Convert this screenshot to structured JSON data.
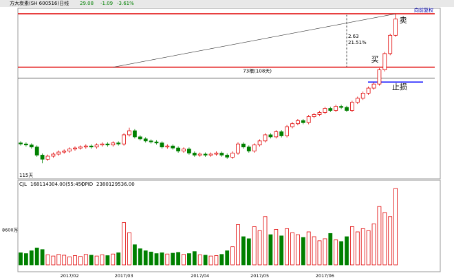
{
  "chart_data": {
    "type": "candlestick",
    "title": "方大炭素(SH 600516)日线",
    "last": "29.08",
    "change": "-1.09",
    "change_pct": "-3.61%",
    "adjust": "向前复权",
    "ylim": [
      6.9,
      15.2
    ],
    "categories": [
      null,
      null,
      null,
      null,
      null,
      null,
      null,
      null,
      null,
      "2017/02",
      null,
      null,
      null,
      null,
      null,
      null,
      null,
      null,
      null,
      "2017/03",
      null,
      null,
      null,
      null,
      null,
      null,
      null,
      null,
      null,
      null,
      null,
      null,
      null,
      "2017/04",
      null,
      null,
      null,
      null,
      null,
      null,
      null,
      null,
      null,
      null,
      "2017/05",
      null,
      null,
      null,
      null,
      null,
      null,
      null,
      null,
      null,
      null,
      null,
      "2017/06",
      null,
      null,
      null,
      null,
      null,
      null,
      null,
      null,
      null,
      null,
      null,
      null,
      null
    ],
    "open": [
      8.5,
      8.45,
      8.4,
      8.3,
      7.9,
      7.7,
      7.85,
      7.95,
      8.05,
      8.1,
      8.2,
      8.25,
      8.3,
      8.35,
      8.3,
      8.4,
      8.45,
      8.4,
      8.5,
      8.45,
      8.9,
      9.1,
      8.8,
      8.7,
      8.6,
      8.55,
      8.5,
      8.3,
      8.35,
      8.25,
      8.1,
      8.2,
      8.0,
      7.9,
      7.95,
      7.9,
      7.95,
      8.0,
      7.9,
      7.8,
      8.0,
      8.45,
      8.3,
      8.1,
      8.4,
      8.6,
      8.9,
      8.8,
      9.05,
      8.85,
      9.3,
      9.45,
      9.6,
      9.5,
      9.8,
      9.9,
      10.0,
      10.2,
      10.1,
      10.3,
      10.25,
      10.1,
      10.5,
      10.7,
      10.95,
      11.2,
      11.4,
      12.1,
      12.9,
      13.8
    ],
    "close": [
      8.45,
      8.4,
      8.3,
      7.9,
      7.7,
      7.85,
      7.95,
      8.05,
      8.1,
      8.2,
      8.25,
      8.3,
      8.35,
      8.3,
      8.4,
      8.45,
      8.4,
      8.5,
      8.45,
      8.9,
      9.1,
      8.8,
      8.7,
      8.6,
      8.55,
      8.5,
      8.3,
      8.35,
      8.25,
      8.1,
      8.2,
      8.0,
      7.9,
      7.95,
      7.9,
      7.95,
      8.0,
      7.9,
      7.8,
      8.0,
      8.45,
      8.3,
      8.1,
      8.4,
      8.6,
      8.9,
      8.8,
      9.05,
      8.85,
      9.3,
      9.45,
      9.6,
      9.5,
      9.8,
      9.9,
      10.0,
      10.2,
      10.1,
      10.3,
      10.25,
      10.1,
      10.5,
      10.7,
      10.95,
      11.2,
      11.4,
      12.1,
      12.9,
      13.8,
      14.6
    ],
    "high": [
      8.58,
      8.53,
      8.48,
      8.38,
      7.98,
      7.93,
      8.03,
      8.13,
      8.18,
      8.28,
      8.33,
      8.38,
      8.43,
      8.43,
      8.48,
      8.53,
      8.53,
      8.58,
      8.58,
      8.98,
      9.25,
      9.18,
      8.88,
      8.78,
      8.68,
      8.63,
      8.58,
      8.43,
      8.43,
      8.33,
      8.28,
      8.28,
      8.08,
      8.03,
      8.03,
      8.03,
      8.08,
      8.08,
      7.98,
      8.08,
      8.53,
      8.53,
      8.38,
      8.48,
      8.68,
      8.98,
      8.98,
      9.13,
      9.13,
      9.38,
      9.53,
      9.68,
      9.68,
      9.88,
      9.98,
      10.08,
      10.28,
      10.28,
      10.38,
      10.38,
      10.33,
      10.58,
      10.78,
      11.03,
      11.28,
      11.48,
      12.18,
      12.98,
      13.88,
      14.86
    ],
    "low": [
      8.37,
      8.32,
      8.22,
      7.82,
      7.5,
      7.62,
      7.77,
      7.87,
      7.97,
      8.02,
      8.12,
      8.17,
      8.22,
      8.22,
      8.22,
      8.32,
      8.32,
      8.32,
      8.37,
      8.37,
      8.82,
      8.72,
      8.62,
      8.52,
      8.47,
      8.42,
      8.22,
      8.22,
      8.17,
      8.02,
      8.02,
      7.92,
      7.82,
      7.82,
      7.82,
      7.82,
      7.87,
      7.82,
      7.72,
      7.72,
      7.92,
      8.22,
      8.02,
      8.02,
      8.32,
      8.52,
      8.72,
      8.72,
      8.77,
      8.77,
      9.22,
      9.37,
      9.42,
      9.42,
      9.72,
      9.82,
      9.92,
      10.02,
      10.02,
      10.17,
      10.02,
      10.02,
      10.42,
      10.62,
      10.87,
      11.12,
      11.32,
      12.02,
      12.82,
      13.72
    ],
    "up_color": "#e00000",
    "down_color": "#008000",
    "levels": [
      {
        "value": 14.86,
        "color": "#e00000"
      },
      {
        "value": 12.23,
        "color": "#e00000"
      },
      {
        "value": 11.7,
        "color": "#000000"
      }
    ],
    "stop_level": {
      "value": 11.5,
      "color": "#0000ff",
      "label": "止损"
    },
    "trend_line": {
      "start_index": 17,
      "end_index": 69,
      "start_price": 12.23,
      "end_price": 14.86
    },
    "measure": {
      "index": 60,
      "diff": "2.63",
      "pct": "21.51%",
      "span": "73根(108天)"
    },
    "buy_label": "买",
    "sell_label": "卖",
    "bottom_note": "115天",
    "volume": {
      "title": "CJL",
      "title_value": "168114304.00(55:45)",
      "extra": "OPID",
      "extra_value": "2380129536.00",
      "ylim": [
        0,
        20000
      ],
      "yticks": [
        {
          "value": 8600,
          "label": "8600万"
        }
      ],
      "values": [
        3000,
        2800,
        3500,
        4200,
        3800,
        2500,
        2200,
        2600,
        2400,
        2000,
        2300,
        2100,
        2600,
        2400,
        2200,
        2500,
        2300,
        2700,
        3000,
        10500,
        8000,
        5000,
        4000,
        3500,
        3200,
        2800,
        3000,
        2700,
        2900,
        3100,
        2600,
        2800,
        3300,
        2500,
        2400,
        2200,
        2300,
        2600,
        3500,
        4500,
        10000,
        7000,
        6500,
        9500,
        8500,
        12000,
        7500,
        8800,
        7200,
        9000,
        8000,
        7500,
        6800,
        8200,
        7000,
        6000,
        6500,
        7800,
        6200,
        5800,
        7000,
        9500,
        8200,
        9000,
        8500,
        10200,
        14500,
        13000,
        12000,
        19000
      ]
    }
  }
}
